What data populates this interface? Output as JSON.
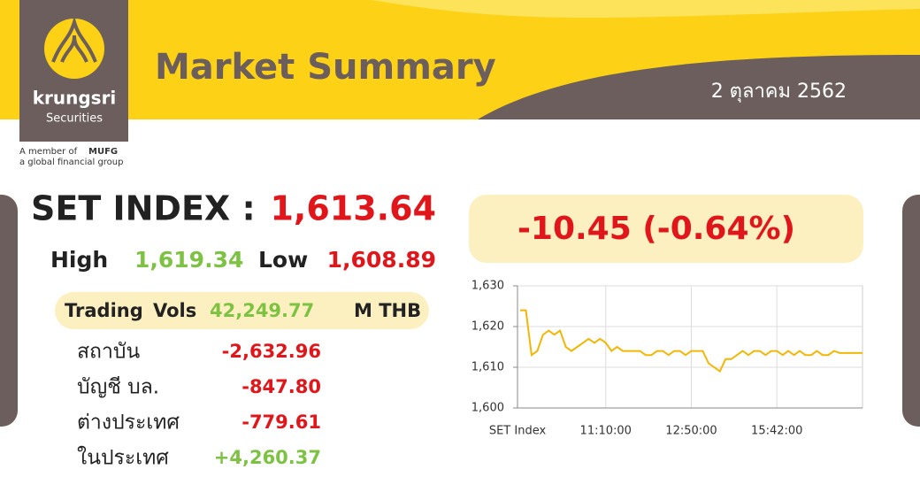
{
  "header": {
    "brand": "krungsri",
    "brand_sub": "Securities",
    "member": "A member of",
    "group": "MUFG",
    "tagline": "a global financial group",
    "title": "Market Summary",
    "date": "2 ตุลาคม 2562"
  },
  "set_index": {
    "label": "SET INDEX :",
    "value": "1,613.64",
    "high_label": "High",
    "high": "1,619.34",
    "low_label": "Low",
    "low": "1,608.89",
    "change": "-10.45 (-0.64%)"
  },
  "trading": {
    "label": "Trading",
    "vols_label": "Vols",
    "value": "42,249.77",
    "unit": "M THB"
  },
  "investors": [
    [
      "สถาบัน",
      "-2,632.96"
    ],
    [
      "บัญชี บล.",
      "-847.80"
    ],
    [
      "ต่างประเทศ",
      "-779.61"
    ],
    [
      "ในประเทศ",
      "+4,260.37"
    ]
  ],
  "chart_data": {
    "type": "line",
    "x_label": "SET Index",
    "categories": [
      null,
      null,
      null,
      null,
      null,
      null,
      null,
      null,
      null,
      null,
      null,
      null,
      null,
      null,
      null,
      "11:10:00",
      null,
      null,
      null,
      null,
      null,
      null,
      null,
      null,
      null,
      null,
      null,
      null,
      null,
      null,
      "12:50:00",
      null,
      null,
      null,
      null,
      null,
      null,
      null,
      null,
      null,
      null,
      null,
      null,
      null,
      null,
      "15:42:00",
      null,
      null,
      null,
      null,
      null,
      null,
      null,
      null,
      null,
      null,
      null,
      null,
      null,
      null,
      null
    ],
    "series": [
      {
        "name": "SET Index",
        "color": "#f2b705",
        "values": [
          1624,
          1624,
          1613,
          1614,
          1618,
          1619,
          1618,
          1619,
          1615,
          1614,
          1615,
          1616,
          1617,
          1616,
          1617,
          1616,
          1614,
          1615,
          1614,
          1614,
          1614,
          1614,
          1613,
          1613,
          1614,
          1614,
          1613,
          1614,
          1614,
          1613,
          1614,
          1614,
          1614,
          1611,
          1610,
          1609,
          1612,
          1612,
          1613,
          1614,
          1613,
          1614,
          1614,
          1613,
          1614,
          1614,
          1613,
          1614,
          1613,
          1614,
          1613,
          1613,
          1614,
          1613,
          1613,
          1614,
          1613.5,
          1613.5,
          1613.5,
          1613.5,
          1613.5
        ]
      }
    ],
    "ylim": [
      1600,
      1630
    ],
    "yticks": [
      {
        "value": 1600,
        "label": "1,600"
      },
      {
        "value": 1610,
        "label": "1,610"
      },
      {
        "value": 1620,
        "label": "1,620"
      },
      {
        "value": 1630,
        "label": "1,630"
      }
    ],
    "grid": true
  }
}
